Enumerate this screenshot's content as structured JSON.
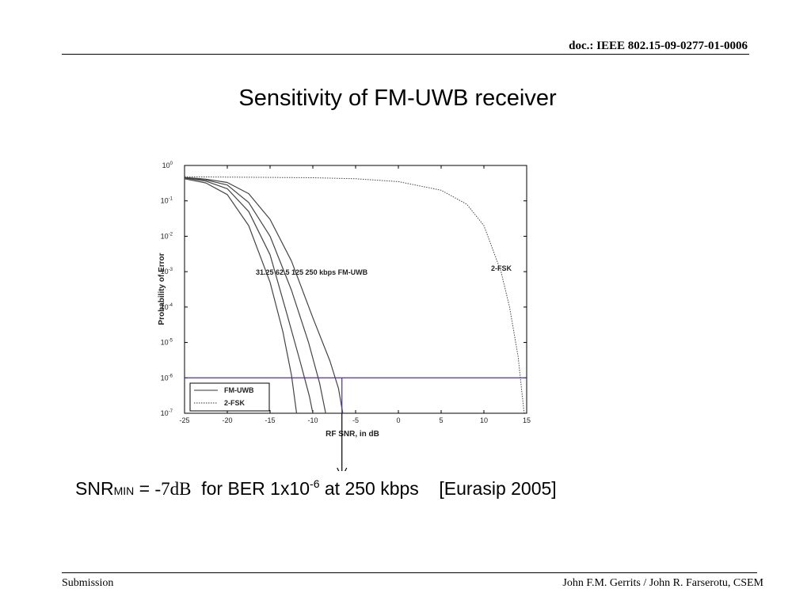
{
  "header": {
    "doc_id": "doc.: IEEE 802.15-09-0277-01-0006"
  },
  "slide": {
    "title": "Sensitivity of FM-UWB receiver"
  },
  "snr": {
    "label": "SNR",
    "sub": "MIN",
    "eq": " = ",
    "value": "-7dB",
    "mid": "  for BER 1x10",
    "exp": "-6",
    "rest": " at 250 kbps    [Eurasip 2005]"
  },
  "footer": {
    "left": "Submission",
    "right": "John F.M. Gerrits / John R. Farserotu, CSEM"
  },
  "chart_data": {
    "type": "line",
    "xlabel": "RF SNR, in dB",
    "ylabel": "Probability of Error",
    "xlim": [
      -25,
      15
    ],
    "ylim": [
      1e-07,
      1
    ],
    "yscale": "log",
    "x_ticks": [
      "-25",
      "-20",
      "-15",
      "-10",
      "-5",
      "0",
      "5",
      "10",
      "15"
    ],
    "y_ticks": [
      {
        "base": "10",
        "exp": "0"
      },
      {
        "base": "10",
        "exp": "-1"
      },
      {
        "base": "10",
        "exp": "-2"
      },
      {
        "base": "10",
        "exp": "-3"
      },
      {
        "base": "10",
        "exp": "-4"
      },
      {
        "base": "10",
        "exp": "-5"
      },
      {
        "base": "10",
        "exp": "-6"
      },
      {
        "base": "10",
        "exp": "-7"
      }
    ],
    "legend": {
      "position": "bottom-left",
      "entries": [
        {
          "name": "FM-UWB",
          "style": "solid"
        },
        {
          "name": "2-FSK",
          "style": "dotted"
        }
      ]
    },
    "annotation_rates": "31.25  62.5   125  250 kbps  FM-UWB",
    "annotation_fsk": "2-FSK",
    "series": [
      {
        "name": "",
        "group": "FM-UWB",
        "x": [
          -25,
          -22.5,
          -20,
          -17.5,
          -15,
          -13.5,
          -12.5,
          -11.9
        ],
        "y": [
          0.42,
          0.32,
          0.15,
          0.02,
          0.0005,
          2e-05,
          1.2e-06,
          1e-07
        ]
      },
      {
        "name": "",
        "group": "FM-UWB",
        "x": [
          -25,
          -22.5,
          -20,
          -17.5,
          -15,
          -13,
          -11.5,
          -10.4,
          -10
        ],
        "y": [
          0.44,
          0.36,
          0.22,
          0.05,
          0.003,
          6e-05,
          3e-06,
          3e-07,
          1e-07
        ]
      },
      {
        "name": "",
        "group": "FM-UWB",
        "x": [
          -25,
          -22.5,
          -20,
          -17.5,
          -15,
          -12.5,
          -10.5,
          -9.2,
          -8.5
        ],
        "y": [
          0.45,
          0.39,
          0.28,
          0.09,
          0.01,
          0.0003,
          1e-05,
          7e-07,
          1e-07
        ]
      },
      {
        "name": "",
        "group": "FM-UWB",
        "x": [
          -25,
          -22.5,
          -20,
          -17.5,
          -15,
          -12.5,
          -10,
          -8,
          -7,
          -6.5
        ],
        "y": [
          0.46,
          0.41,
          0.33,
          0.16,
          0.03,
          0.002,
          5e-05,
          3e-06,
          5e-07,
          1e-07
        ]
      },
      {
        "name": "",
        "group": "2-FSK",
        "x": [
          -25,
          -20,
          -15,
          -10,
          -5,
          0,
          5,
          8,
          10,
          12,
          13,
          14,
          14.7
        ],
        "y": [
          0.48,
          0.47,
          0.46,
          0.45,
          0.42,
          0.35,
          0.2,
          0.08,
          0.02,
          0.001,
          0.0001,
          4e-06,
          1e-07
        ]
      }
    ],
    "reference_lines": [
      {
        "orientation": "horizontal",
        "y": 1e-06,
        "color": "#4b2fa0"
      },
      {
        "orientation": "vertical",
        "x": -6.6,
        "color": "#4b2fa0",
        "y_from": 1e-06,
        "y_to": 1e-07
      }
    ],
    "pointer_arrow": {
      "x": -6.6
    }
  }
}
